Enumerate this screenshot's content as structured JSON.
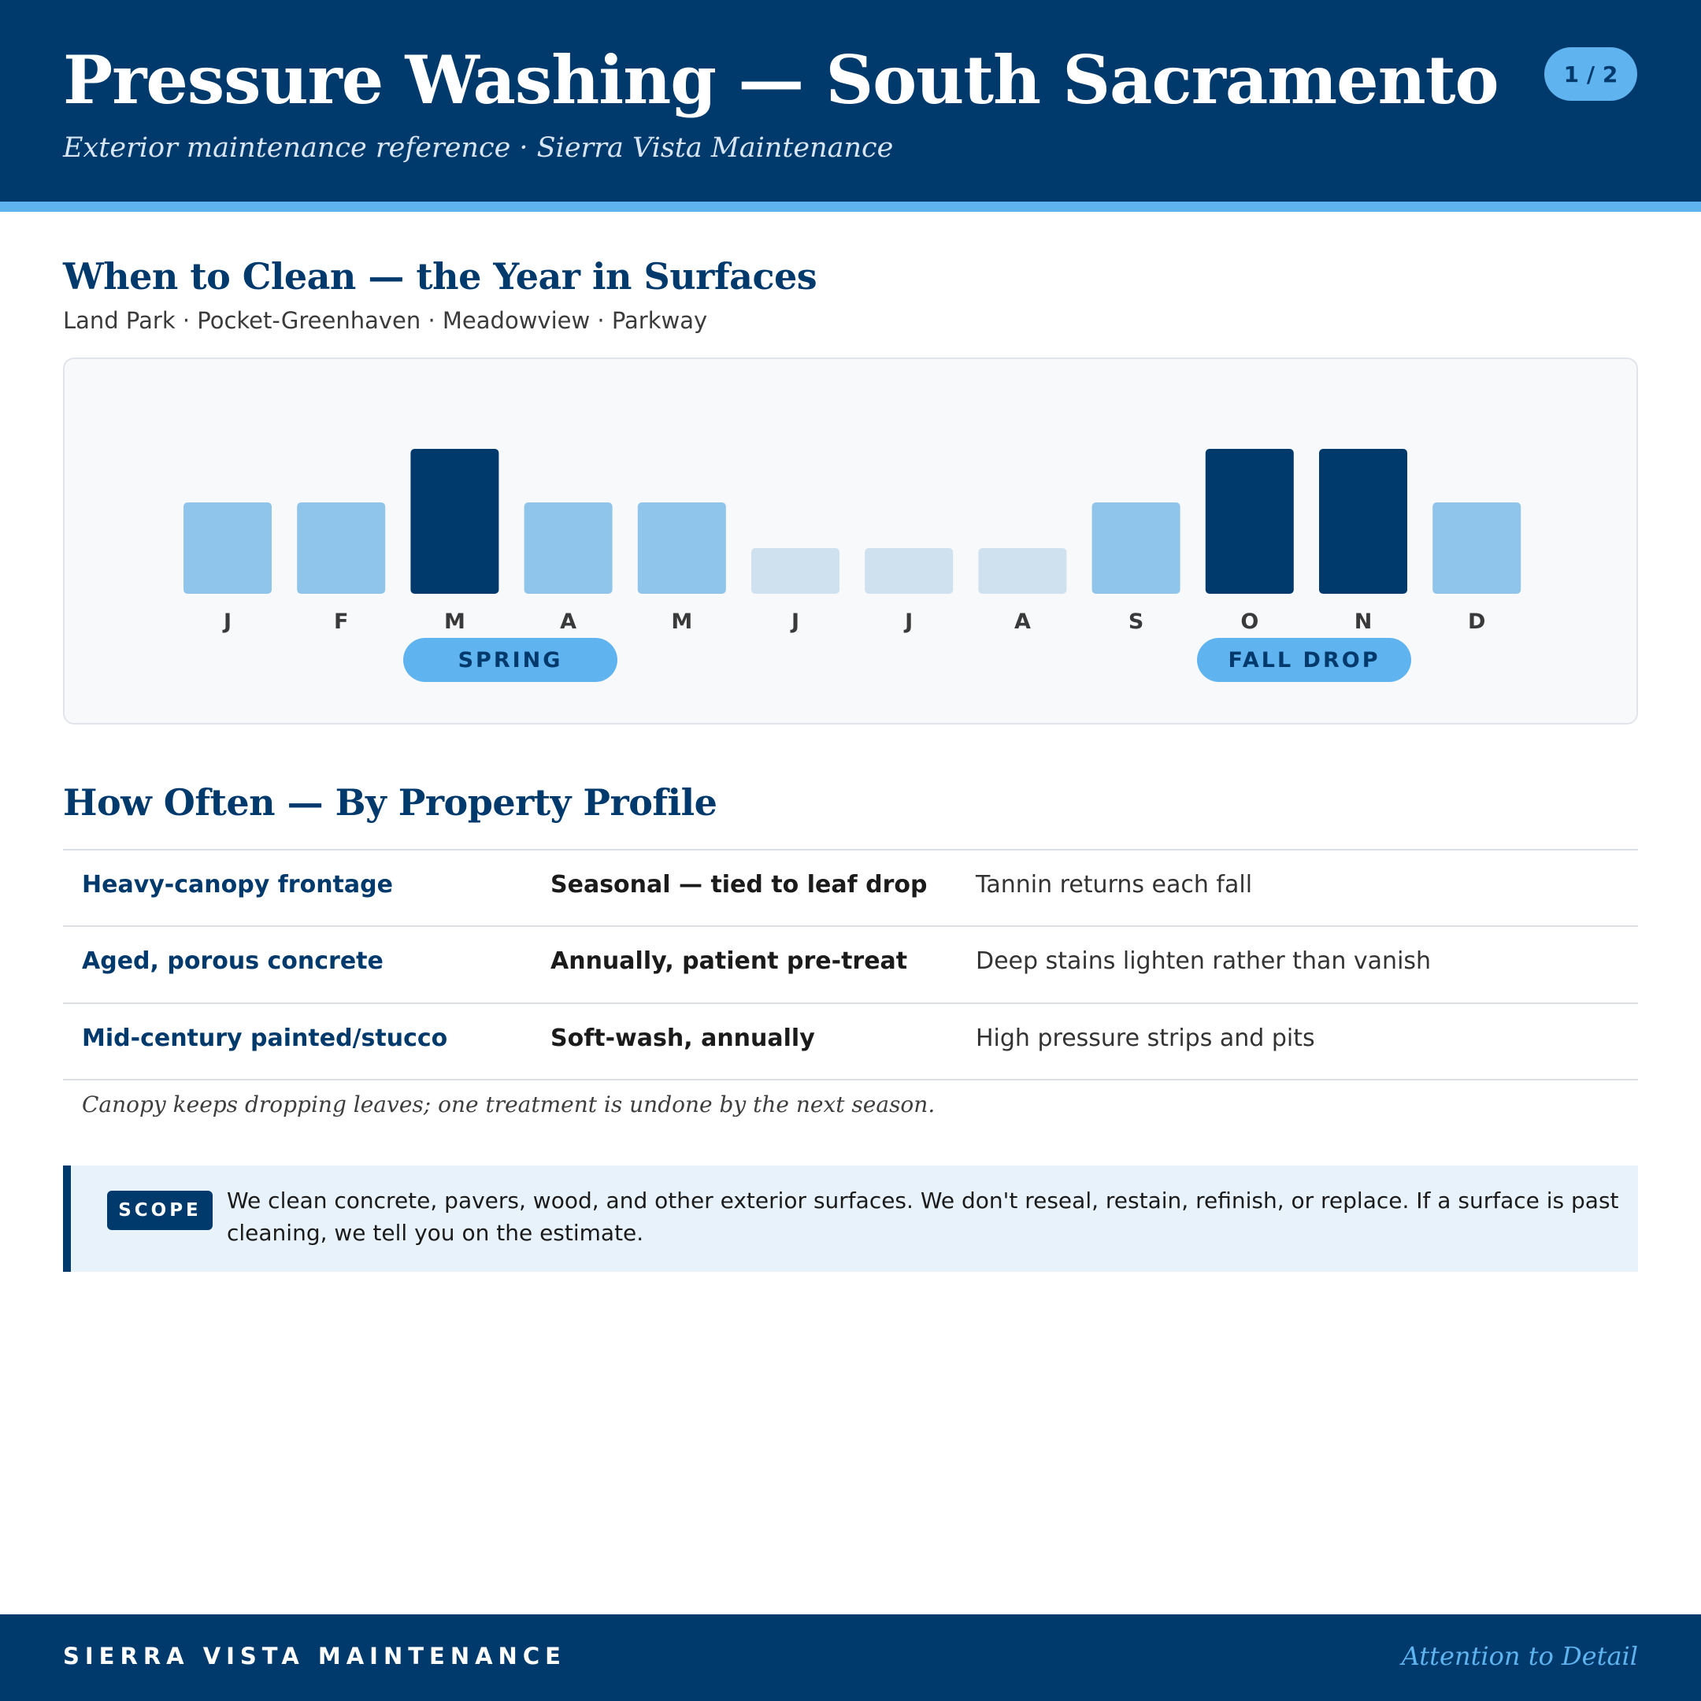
{
  "header": {
    "title": "Pressure Washing — South Sacramento",
    "subtitle": "Exterior maintenance reference · Sierra Vista Maintenance",
    "page_indicator": "1 / 2"
  },
  "section_when": {
    "heading": "When to Clean — the Year in Surfaces",
    "areas": "Land Park · Pocket-Greenhaven · Meadowview · Parkway"
  },
  "chart_data": {
    "type": "bar",
    "categories": [
      "J",
      "F",
      "M",
      "A",
      "M",
      "J",
      "J",
      "A",
      "S",
      "O",
      "N",
      "D"
    ],
    "values": [
      2,
      2,
      3,
      2,
      2,
      1,
      1,
      1,
      2,
      3,
      3,
      2
    ],
    "levels": [
      "medium",
      "medium",
      "high",
      "medium",
      "medium",
      "low",
      "low",
      "low",
      "medium",
      "high",
      "high",
      "medium"
    ],
    "colors": {
      "high": "#003a6d",
      "medium": "#8fc4eb",
      "low": "#cfe0ef"
    },
    "season_labels": [
      {
        "label": "SPRING",
        "span": [
          "M",
          "A"
        ]
      },
      {
        "label": "FALL DROP",
        "span": [
          "O",
          "N"
        ]
      }
    ],
    "title": "",
    "xlabel": "",
    "ylabel": ""
  },
  "section_often": {
    "heading": "How Often — By Property Profile",
    "rows": [
      {
        "profile": "Heavy-canopy frontage",
        "frequency": "Seasonal — tied to leaf drop",
        "note": "Tannin returns each fall"
      },
      {
        "profile": "Aged, porous concrete",
        "frequency": "Annually, patient pre-treat",
        "note": "Deep stains lighten rather than vanish"
      },
      {
        "profile": "Mid-century painted/stucco",
        "frequency": "Soft-wash, annually",
        "note": "High pressure strips and pits"
      }
    ],
    "footnote": "Canopy keeps dropping leaves; one treatment is undone by the next season."
  },
  "scope": {
    "tag": "SCOPE",
    "text": "We clean concrete, pavers, wood, and other exterior surfaces. We don't reseal, restain, refinish, or replace. If a surface is past cleaning, we tell you on the estimate."
  },
  "footer": {
    "brand": "SIERRA VISTA MAINTENANCE",
    "tagline": "Attention to Detail"
  },
  "colors": {
    "navy": "#003a6d",
    "sky": "#5fb3ef",
    "light_blue_panel": "#e7f2fb"
  }
}
